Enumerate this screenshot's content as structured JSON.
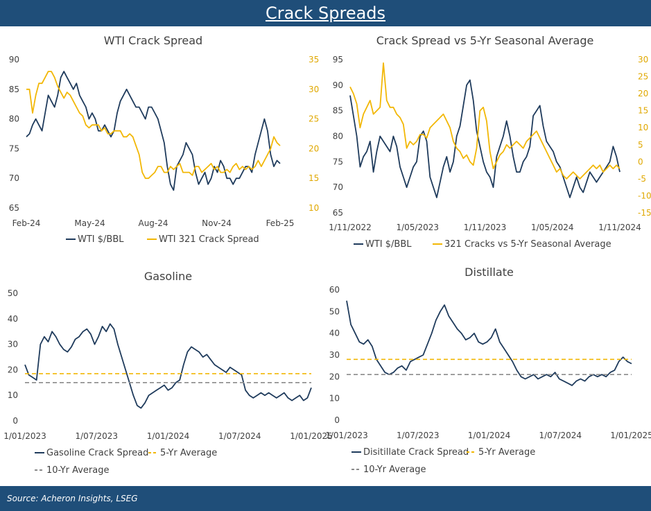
{
  "page": {
    "title": "Crack Spreads",
    "source": "Source: Acheron Insights, LSEG"
  },
  "chart_data": [
    {
      "id": "wti",
      "type": "line",
      "title": "WTI Crack Spread",
      "x_ticks": [
        "Feb-24",
        "May-24",
        "Aug-24",
        "Nov-24",
        "Feb-25"
      ],
      "y_left": {
        "range": [
          65,
          90
        ],
        "ticks": [
          "65",
          "70",
          "75",
          "80",
          "85",
          "90"
        ]
      },
      "y_right": {
        "range": [
          10,
          35
        ],
        "ticks": [
          "10",
          "15",
          "20",
          "25",
          "30",
          "35"
        ]
      },
      "series": [
        {
          "name": "WTI $/BBL",
          "axis": "left",
          "color": "#1f3b5c",
          "values": [
            77,
            77.5,
            79,
            80,
            79,
            78,
            81,
            84,
            83,
            82,
            84,
            87,
            88,
            87,
            86,
            85,
            86,
            84,
            83,
            82,
            80,
            81,
            80,
            78,
            78,
            79,
            78,
            77,
            78,
            81,
            83,
            84,
            85,
            84,
            83,
            82,
            82,
            81,
            80,
            82,
            82,
            81,
            80,
            78,
            76,
            72,
            69,
            68,
            72,
            73,
            74,
            76,
            75,
            74,
            71,
            69,
            70,
            71,
            69,
            70,
            72,
            71,
            73,
            72,
            70,
            70,
            69,
            70,
            70,
            71,
            72,
            72,
            71,
            74,
            76,
            78,
            80,
            78,
            74,
            72,
            73,
            72.5
          ]
        },
        {
          "name": "WTI 321 Crack Spread",
          "axis": "right",
          "color": "#f2b705",
          "values": [
            30,
            30,
            26,
            29,
            31,
            31,
            32,
            33,
            33,
            32,
            30.5,
            29.5,
            28.5,
            29.5,
            29,
            28,
            27,
            26,
            25.5,
            24,
            23.5,
            24,
            24,
            24,
            23,
            23.5,
            22.5,
            22.5,
            23,
            23,
            23,
            22,
            22,
            22.5,
            22,
            20.5,
            19,
            16,
            15,
            15,
            15.5,
            16,
            17,
            17,
            16,
            16,
            17,
            16.5,
            17,
            17.5,
            16,
            16,
            16,
            15.5,
            17,
            17,
            16,
            16.5,
            17,
            17.5,
            16.5,
            17,
            16,
            16,
            16.5,
            16,
            17,
            17.5,
            16.5,
            17,
            16.5,
            17,
            16.5,
            17,
            18,
            17,
            18,
            19,
            20,
            22,
            21,
            20.5
          ]
        }
      ]
    },
    {
      "id": "seasonal",
      "type": "line",
      "title": "Crack Spread vs 5-Yr Seasonal Average",
      "x_ticks": [
        "1/11/2022",
        "1/05/2023",
        "1/11/2023",
        "1/05/2024",
        "1/11/2024"
      ],
      "y_left": {
        "range": [
          65,
          95
        ],
        "ticks": [
          "65",
          "70",
          "75",
          "80",
          "85",
          "90",
          "95"
        ]
      },
      "y_right": {
        "range": [
          -15,
          30
        ],
        "ticks": [
          "-15",
          "-10",
          "-5",
          "0",
          "5",
          "10",
          "15",
          "20",
          "25",
          "30"
        ]
      },
      "series": [
        {
          "name": "WTI $/BBL",
          "axis": "left",
          "color": "#1f3b5c",
          "values": [
            88,
            84,
            80,
            74,
            76,
            77,
            79,
            73,
            77,
            80,
            79,
            78,
            77,
            80,
            78,
            74,
            72,
            70,
            72,
            74,
            75,
            80,
            81,
            79,
            72,
            70,
            68,
            71,
            74,
            76,
            73,
            75,
            80,
            82,
            86,
            90,
            91,
            87,
            81,
            78,
            75,
            73,
            72,
            70,
            76,
            78,
            80,
            83,
            80,
            76,
            73,
            73,
            75,
            76,
            78,
            84,
            85,
            86,
            82,
            79,
            78,
            77,
            75,
            74,
            72,
            70,
            68,
            70,
            72,
            70,
            69,
            71,
            73,
            72,
            71,
            72,
            73,
            74,
            75,
            78,
            76,
            73
          ]
        },
        {
          "name": "321 Cracks vs 5-Yr Seasonal Average",
          "axis": "right",
          "color": "#f2b705",
          "values": [
            22,
            20,
            17,
            10,
            14,
            16,
            18,
            14,
            15,
            16,
            29,
            18,
            16,
            16,
            14,
            13,
            11,
            4,
            6,
            5,
            6,
            8,
            8,
            7,
            10,
            11,
            12,
            13,
            14,
            12,
            10,
            6,
            4,
            3,
            1,
            2,
            0,
            -1,
            4,
            15,
            16,
            12,
            3,
            -2,
            0,
            2,
            3,
            5,
            4,
            5,
            6,
            5,
            4,
            6,
            7,
            8,
            9,
            7,
            5,
            3,
            1,
            -1,
            -3,
            -2,
            -4,
            -5,
            -4,
            -3,
            -4,
            -5,
            -4,
            -3,
            -2,
            -1,
            -2,
            -1,
            -3,
            -2,
            -1,
            -2,
            -1,
            -2
          ]
        }
      ]
    },
    {
      "id": "gasoline",
      "type": "line",
      "title": "Gasoline",
      "x_ticks": [
        "1/01/2023",
        "1/07/2023",
        "1/01/2024",
        "1/07/2024",
        "1/01/2025"
      ],
      "y_left": {
        "range": [
          0,
          50
        ],
        "ticks": [
          "0",
          "10",
          "20",
          "30",
          "40",
          "50"
        ]
      },
      "series": [
        {
          "name": "Gasoline Crack Spread",
          "color": "#1f3b5c",
          "values": [
            22,
            18,
            17,
            16,
            30,
            33,
            31,
            35,
            33,
            30,
            28,
            27,
            29,
            32,
            33,
            35,
            36,
            34,
            30,
            33,
            37,
            35,
            38,
            36,
            30,
            25,
            20,
            15,
            10,
            6,
            5,
            7,
            10,
            11,
            12,
            13,
            14,
            12,
            13,
            15,
            16,
            22,
            27,
            29,
            28,
            27,
            25,
            26,
            24,
            22,
            21,
            20,
            19,
            21,
            20,
            19,
            18,
            12,
            10,
            9,
            10,
            11,
            10,
            11,
            10,
            9,
            10,
            11,
            9,
            8,
            9,
            10,
            8,
            9,
            13
          ]
        },
        {
          "name": "5-Yr Average",
          "color": "#f2b705",
          "dashed": true,
          "values": [
            18.5
          ]
        },
        {
          "name": "10-Yr Average",
          "color": "#8a8a8a",
          "dashed": true,
          "values": [
            15
          ]
        }
      ]
    },
    {
      "id": "distillate",
      "type": "line",
      "title": "Distillate",
      "x_ticks": [
        "1/01/2023",
        "1/07/2023",
        "1/01/2024",
        "1/07/2024",
        "1/01/2025"
      ],
      "y_left": {
        "range": [
          0,
          60
        ],
        "ticks": [
          "0",
          "10",
          "20",
          "30",
          "40",
          "50",
          "60"
        ]
      },
      "series": [
        {
          "name": "Disitillate Crack Spread",
          "color": "#1f3b5c",
          "values": [
            55,
            44,
            40,
            36,
            35,
            37,
            34,
            28,
            25,
            22,
            21,
            22,
            24,
            25,
            23,
            27,
            28,
            29,
            30,
            35,
            40,
            46,
            50,
            53,
            48,
            45,
            42,
            40,
            37,
            38,
            40,
            36,
            35,
            36,
            38,
            42,
            36,
            33,
            30,
            27,
            23,
            20,
            19,
            20,
            21,
            19,
            20,
            21,
            20,
            22,
            19,
            18,
            17,
            16,
            18,
            19,
            18,
            20,
            21,
            20,
            21,
            20,
            22,
            23,
            27,
            29,
            27,
            26
          ]
        },
        {
          "name": "5-Yr Average",
          "color": "#f2b705",
          "dashed": true,
          "values": [
            28
          ]
        },
        {
          "name": "10-Yr Average",
          "color": "#8a8a8a",
          "dashed": true,
          "values": [
            21
          ]
        }
      ]
    }
  ]
}
